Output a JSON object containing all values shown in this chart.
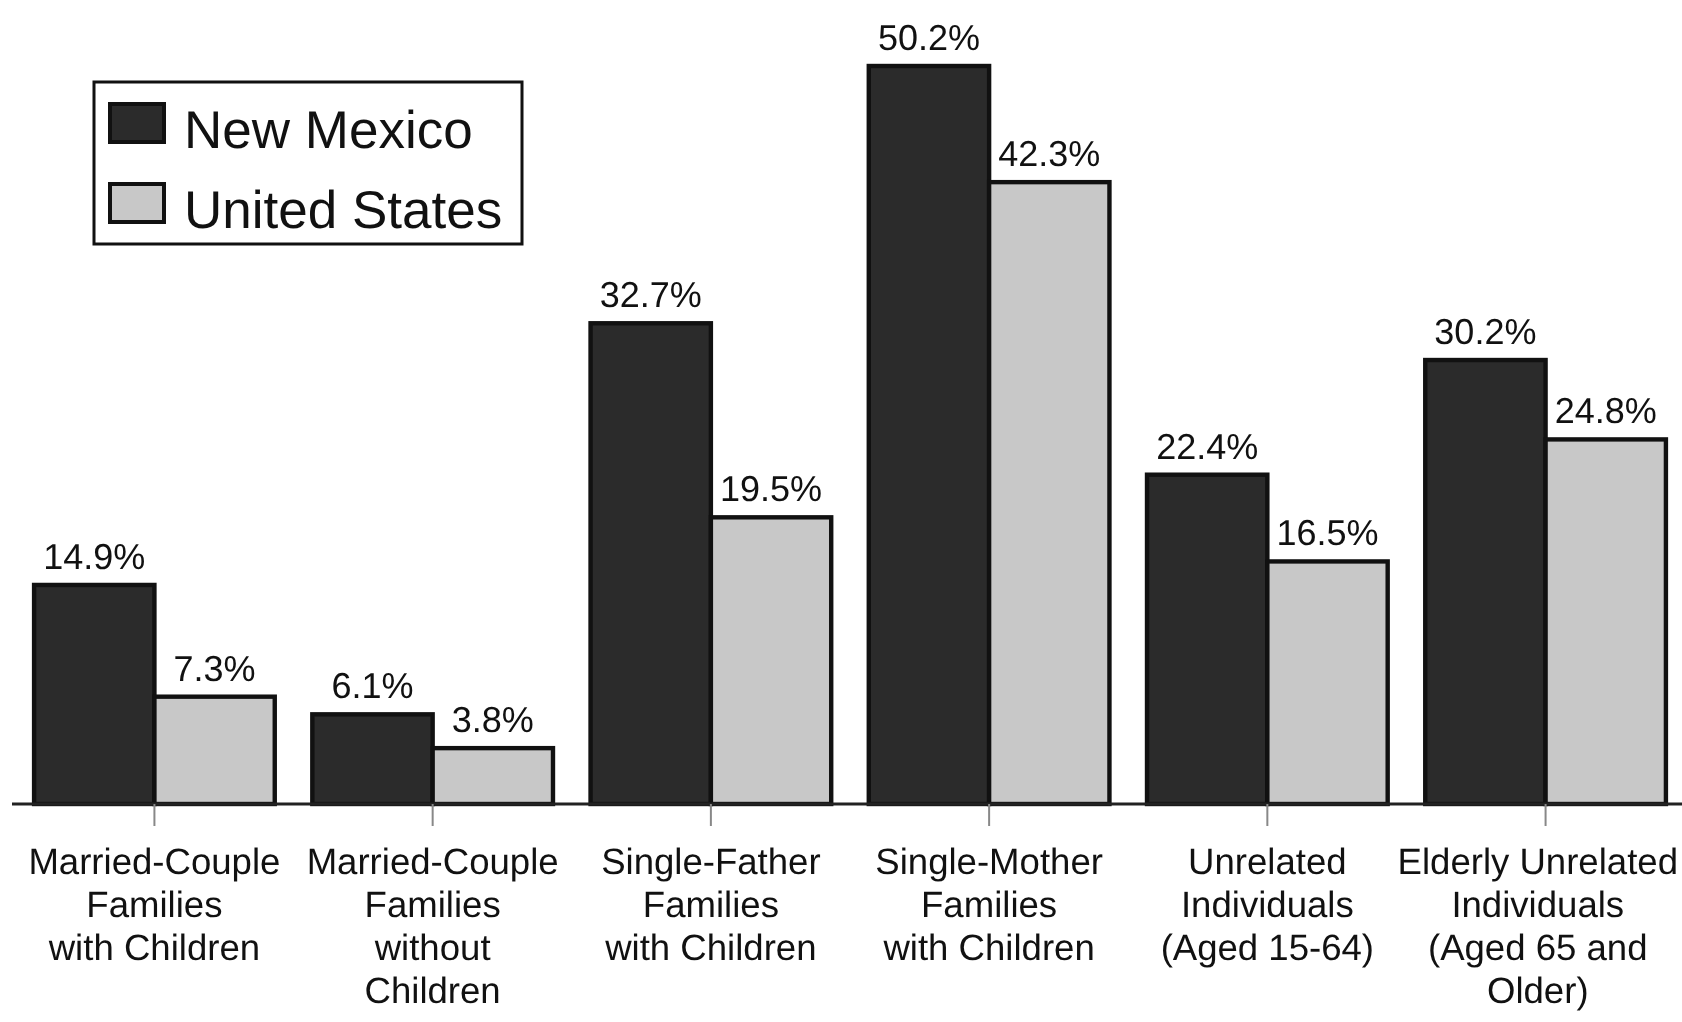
{
  "chart_data": {
    "type": "bar",
    "categories": [
      "Married-Couple\nFamilies\nwith Children",
      "Married-Couple\nFamilies\nwithout\nChildren",
      "Single-Father\nFamilies\nwith Children",
      "Single-Mother\nFamilies\nwith Children",
      "Unrelated\nIndividuals\n(Aged 15-64)",
      "Elderly Unrelated\nIndividuals\n(Aged 65 and\nOlder)"
    ],
    "series": [
      {
        "name": "New Mexico",
        "color": "#2b2b2b",
        "values": [
          14.9,
          6.1,
          32.7,
          50.2,
          22.4,
          30.2
        ],
        "value_labels": [
          "14.9%",
          "6.1%",
          "32.7%",
          "50.2%",
          "22.4%",
          "30.2%"
        ]
      },
      {
        "name": "United States",
        "color": "#c8c8c8",
        "values": [
          7.3,
          3.8,
          19.5,
          42.3,
          16.5,
          24.8
        ],
        "value_labels": [
          "7.3%",
          "3.8%",
          "19.5%",
          "42.3%",
          "16.5%",
          "24.8%"
        ]
      }
    ],
    "legend": "top left"
  }
}
